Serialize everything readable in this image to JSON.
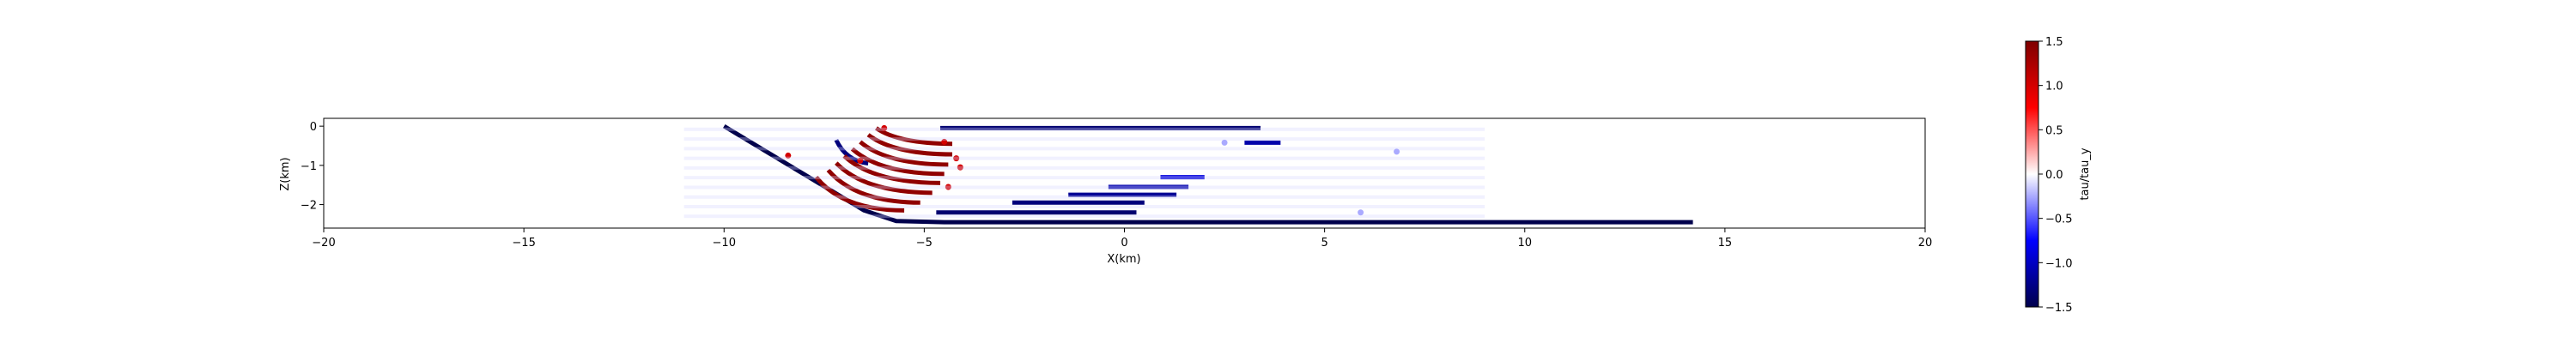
{
  "chart_data": {
    "type": "scatter",
    "title": "",
    "xlabel": "X(km)",
    "ylabel": "Z(km)",
    "xlim": [
      -20,
      20
    ],
    "ylim": [
      -2.6,
      0.2
    ],
    "xticks": [
      -20,
      -15,
      -10,
      -5,
      0,
      5,
      10,
      15,
      20
    ],
    "xtick_labels": [
      "−20",
      "−15",
      "−10",
      "−5",
      "0",
      "5",
      "10",
      "15",
      "20"
    ],
    "yticks": [
      0,
      -1,
      -2
    ],
    "ytick_labels": [
      "0",
      "−1",
      "−2"
    ],
    "colormap": "seismic",
    "colorbar": {
      "label": "tau/tau_y",
      "range": [
        -1.5,
        1.5
      ],
      "ticks": [
        1.5,
        1.0,
        0.5,
        0.0,
        -0.5,
        -1.0,
        -1.5
      ],
      "tick_labels": [
        "1.5",
        "1.0",
        "0.5",
        "0.0",
        "−0.5",
        "−1.0",
        "−1.5"
      ]
    },
    "series": [
      {
        "kind": "line",
        "x": [
          -10,
          -6.5,
          -5.7,
          -4.5,
          14.2
        ],
        "z": [
          0,
          -2.15,
          -2.42,
          -2.45,
          -2.45
        ],
        "value": -1.5
      },
      {
        "kind": "line",
        "x": [
          -4.6,
          3.4
        ],
        "z": [
          -0.05,
          -0.05
        ],
        "value": -1.35
      },
      {
        "kind": "line",
        "x": [
          -4.7,
          0.3
        ],
        "z": [
          -2.2,
          -2.2
        ],
        "value": -1.35
      },
      {
        "kind": "line",
        "x": [
          -2.8,
          0.5
        ],
        "z": [
          -1.95,
          -1.95
        ],
        "value": -1.3
      },
      {
        "kind": "line",
        "x": [
          -1.4,
          1.3
        ],
        "z": [
          -1.75,
          -1.75
        ],
        "value": -1.2
      },
      {
        "kind": "line",
        "x": [
          -0.4,
          1.6
        ],
        "z": [
          -1.55,
          -1.55
        ],
        "value": -1.1
      },
      {
        "kind": "line",
        "x": [
          0.9,
          2.0
        ],
        "z": [
          -1.3,
          -1.3
        ],
        "value": -0.9
      },
      {
        "kind": "line",
        "x": [
          3.0,
          3.9
        ],
        "z": [
          -0.42,
          -0.42
        ],
        "value": -1.1
      },
      {
        "kind": "line",
        "x": [
          -7.2,
          -6.4
        ],
        "z": [
          -0.35,
          -0.95
        ],
        "curve": 1.6,
        "value": -1.3
      },
      {
        "kind": "line",
        "x": [
          -6.2,
          -4.3
        ],
        "z": [
          -0.05,
          -0.45
        ],
        "curve": 1.8,
        "value": 1.4
      },
      {
        "kind": "line",
        "x": [
          -6.4,
          -4.3
        ],
        "z": [
          -0.22,
          -0.72
        ],
        "curve": 1.8,
        "value": 1.4
      },
      {
        "kind": "line",
        "x": [
          -6.6,
          -4.4
        ],
        "z": [
          -0.4,
          -0.98
        ],
        "curve": 1.8,
        "value": 1.4
      },
      {
        "kind": "line",
        "x": [
          -6.8,
          -4.5
        ],
        "z": [
          -0.58,
          -1.22
        ],
        "curve": 1.8,
        "value": 1.4
      },
      {
        "kind": "line",
        "x": [
          -7.0,
          -4.6
        ],
        "z": [
          -0.76,
          -1.45
        ],
        "curve": 1.8,
        "value": 1.4
      },
      {
        "kind": "line",
        "x": [
          -7.2,
          -4.8
        ],
        "z": [
          -0.94,
          -1.7
        ],
        "curve": 1.8,
        "value": 1.4
      },
      {
        "kind": "line",
        "x": [
          -7.4,
          -5.1
        ],
        "z": [
          -1.12,
          -1.95
        ],
        "curve": 1.8,
        "value": 1.4
      },
      {
        "kind": "line",
        "x": [
          -7.7,
          -5.5
        ],
        "z": [
          -1.3,
          -2.15
        ],
        "curve": 1.8,
        "value": 1.4
      },
      {
        "kind": "point",
        "x": [
          -8.4,
          -6.6,
          -4.5,
          -4.2,
          -4.1,
          -4.4,
          -6.0
        ],
        "z": [
          -0.75,
          -0.88,
          -0.4,
          -0.82,
          -1.05,
          -1.55,
          -0.05
        ],
        "value": 1.0
      },
      {
        "kind": "faint",
        "x": [
          -11,
          9
        ],
        "z": [
          -0.08,
          -2.3
        ],
        "rows": 10,
        "value": -0.12
      },
      {
        "kind": "point",
        "x": [
          6.8,
          2.5,
          5.9
        ],
        "z": [
          -0.65,
          -0.42,
          -2.2
        ],
        "value": -0.25
      }
    ]
  }
}
